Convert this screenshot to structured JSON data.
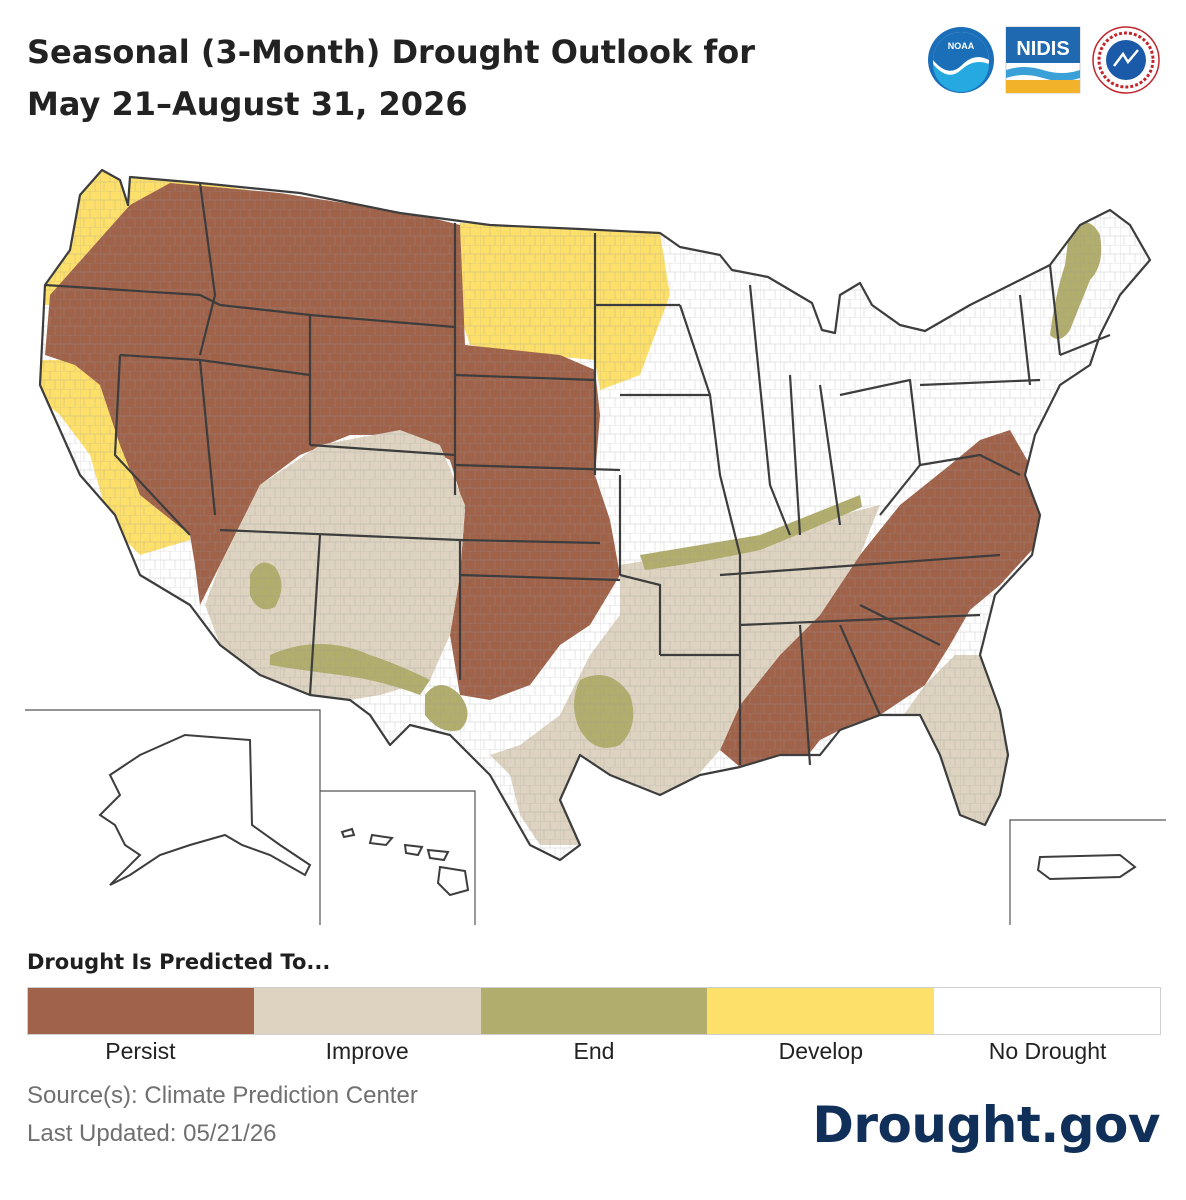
{
  "title": "Seasonal (3-Month) Drought Outlook for May 21–August 31, 2026",
  "logos": {
    "noaa": "NOAA",
    "nidis": "NIDIS",
    "nws": "NATIONAL WEATHER SERVICE"
  },
  "legend": {
    "title": "Drought Is Predicted To...",
    "items": [
      {
        "label": "Persist",
        "color": "#a0634a"
      },
      {
        "label": "Improve",
        "color": "#ddd3c0"
      },
      {
        "label": "End",
        "color": "#b1ad6c"
      },
      {
        "label": "Develop",
        "color": "#fde06a"
      },
      {
        "label": "No Drought",
        "color": "#ffffff"
      }
    ]
  },
  "source": "Source(s): Climate Prediction Center",
  "updated": "Last Updated: 05/21/26",
  "brand": "Drought.gov"
}
